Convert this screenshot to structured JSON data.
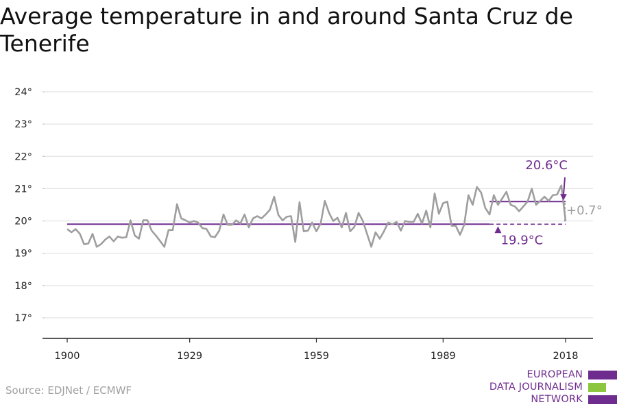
{
  "title": "Average temperature in and around Santa Cruz de Tenerife",
  "source": "Source: EDJNet / ECMWF",
  "logo": {
    "lines": [
      "EUROPEAN",
      "DATA JOURNALISM",
      "NETWORK"
    ],
    "colors": {
      "text": "#6f2c8f",
      "purple": "#6f2c8f",
      "green": "#8cc63f"
    }
  },
  "colors": {
    "line": "#9e9e9e",
    "purple": "#6f2c8f",
    "grid": "#dddddd",
    "axis": "#222222"
  },
  "chart_data": {
    "type": "line",
    "title": "Average temperature in and around Santa Cruz de Tenerife",
    "xlabel": "",
    "ylabel": "",
    "xlim": [
      1900,
      2018
    ],
    "ylim": [
      17,
      24
    ],
    "grid": true,
    "x_ticks": [
      1900,
      1929,
      1959,
      1989,
      2018
    ],
    "x_tick_labels": [
      "1900",
      "1929",
      "1959",
      "1989",
      "2018"
    ],
    "y_ticks": [
      17,
      18,
      19,
      20,
      21,
      22,
      23,
      24
    ],
    "y_tick_labels": [
      "17°",
      "18°",
      "19°",
      "20°",
      "21°",
      "22°",
      "23°",
      "24°"
    ],
    "series": [
      {
        "x": [
          1900,
          1901,
          1902,
          1903,
          1904,
          1905,
          1906,
          1907,
          1908,
          1909,
          1910,
          1911,
          1912,
          1913,
          1914,
          1915,
          1916,
          1917,
          1918,
          1919,
          1920,
          1921,
          1922,
          1923,
          1924,
          1925,
          1926,
          1927,
          1928,
          1929,
          1930,
          1931,
          1932,
          1933,
          1934,
          1935,
          1936,
          1937,
          1938,
          1939,
          1940,
          1941,
          1942,
          1943,
          1944,
          1945,
          1946,
          1947,
          1948,
          1949,
          1950,
          1951,
          1952,
          1953,
          1954,
          1955,
          1956,
          1957,
          1958,
          1959,
          1960,
          1961,
          1962,
          1963,
          1964,
          1965,
          1966,
          1967,
          1968,
          1969,
          1970,
          1971,
          1972,
          1973,
          1974,
          1975,
          1976,
          1977,
          1978,
          1979,
          1980,
          1981,
          1982,
          1983,
          1984,
          1985,
          1986,
          1987,
          1988,
          1989,
          1990,
          1991,
          1992,
          1993,
          1994,
          1995,
          1996,
          1997,
          1998,
          1999,
          2000,
          2001,
          2002,
          2003,
          2004,
          2005,
          2006,
          2007,
          2008,
          2009,
          2010,
          2011,
          2012,
          2013,
          2014,
          2015,
          2016,
          2017,
          2018
        ],
        "values": [
          19.75,
          19.65,
          19.75,
          19.6,
          19.28,
          19.3,
          19.6,
          19.2,
          19.28,
          19.42,
          19.52,
          19.37,
          19.52,
          19.48,
          19.5,
          20.02,
          19.55,
          19.45,
          20.02,
          20.02,
          19.7,
          19.55,
          19.38,
          19.2,
          19.72,
          19.72,
          20.52,
          20.08,
          20.02,
          19.95,
          20.0,
          19.95,
          19.78,
          19.75,
          19.52,
          19.5,
          19.7,
          20.2,
          19.88,
          19.88,
          20.02,
          19.92,
          20.2,
          19.8,
          20.08,
          20.15,
          20.08,
          20.2,
          20.35,
          20.75,
          20.18,
          20.02,
          20.13,
          20.15,
          19.35,
          20.58,
          19.68,
          19.7,
          19.95,
          19.68,
          19.92,
          20.62,
          20.25,
          20.0,
          20.1,
          19.8,
          20.25,
          19.68,
          19.82,
          20.25,
          20.0,
          19.6,
          19.2,
          19.65,
          19.45,
          19.68,
          19.95,
          19.9,
          19.97,
          19.7,
          20.0,
          19.97,
          19.97,
          20.22,
          19.92,
          20.32,
          19.8,
          20.85,
          20.22,
          20.55,
          20.6,
          19.85,
          19.85,
          19.57,
          19.88,
          20.8,
          20.5,
          21.05,
          20.88,
          20.4,
          20.2,
          20.8,
          20.5,
          20.7,
          20.9,
          20.5,
          20.45,
          20.3,
          20.45,
          20.6,
          21.0,
          20.5,
          20.62,
          20.75,
          20.62,
          20.8,
          20.82,
          21.1,
          20.0
        ]
      }
    ],
    "reference_lines": [
      {
        "label": "19.9°C",
        "value": 19.9,
        "x_range": [
          1900,
          2018
        ]
      },
      {
        "label": "20.6°C",
        "value": 20.6,
        "x_range": [
          2000,
          2018
        ]
      }
    ],
    "difference_label": "+0.7°"
  }
}
